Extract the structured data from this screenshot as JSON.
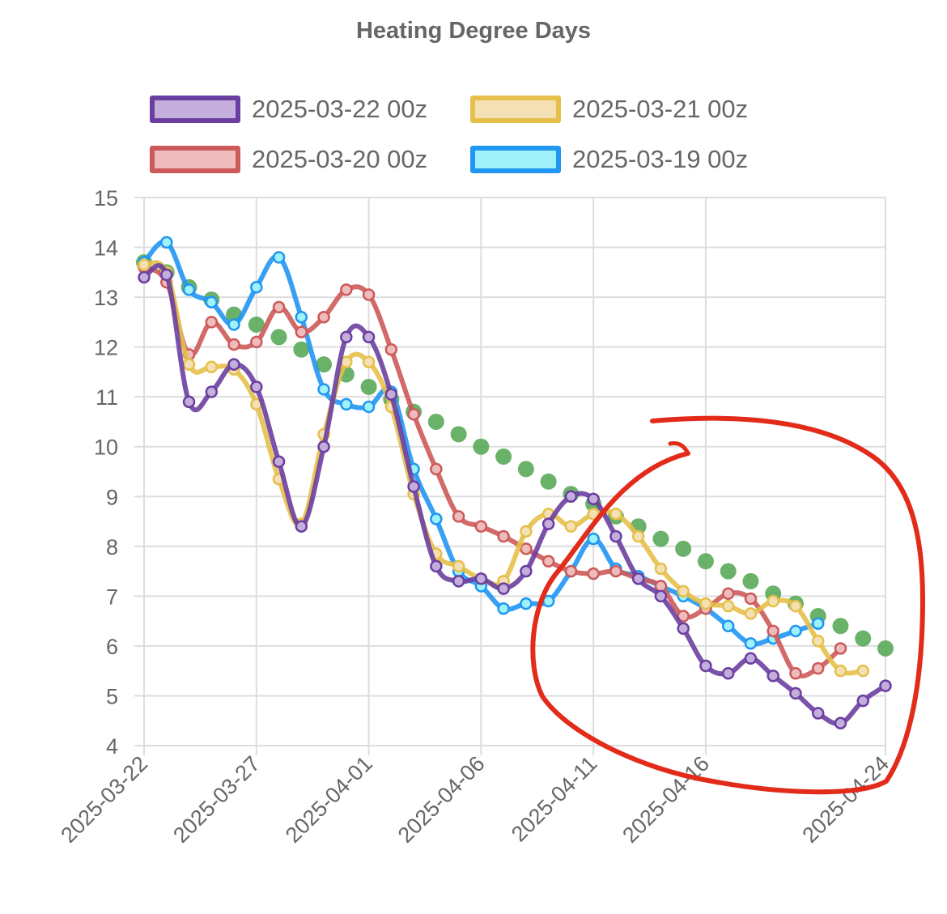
{
  "chart_data": {
    "type": "line",
    "title": "Heating Degree Days",
    "xlabel": "",
    "ylabel": "",
    "ylim": [
      4,
      15
    ],
    "y_ticks": [
      "4",
      "5",
      "6",
      "7",
      "8",
      "9",
      "10",
      "11",
      "12",
      "13",
      "14",
      "15"
    ],
    "x_start": "2025-03-22",
    "x_ticks": [
      "2025-03-22",
      "2025-03-27",
      "2025-04-01",
      "2025-04-06",
      "2025-04-11",
      "2025-04-16",
      "2025-04-24"
    ],
    "grid": true,
    "legend_position": "top",
    "series": [
      {
        "name": "2025-03-22 00z",
        "color": "#6b3fa0",
        "fill": "#c4aedc",
        "x": [
          "2025-03-22",
          "2025-03-23",
          "2025-03-24",
          "2025-03-25",
          "2025-03-26",
          "2025-03-27",
          "2025-03-28",
          "2025-03-29",
          "2025-03-30",
          "2025-03-31",
          "2025-04-01",
          "2025-04-02",
          "2025-04-03",
          "2025-04-04",
          "2025-04-05",
          "2025-04-06",
          "2025-04-07",
          "2025-04-08",
          "2025-04-09",
          "2025-04-10",
          "2025-04-11",
          "2025-04-12",
          "2025-04-13",
          "2025-04-14",
          "2025-04-15",
          "2025-04-16",
          "2025-04-17",
          "2025-04-18",
          "2025-04-19",
          "2025-04-20",
          "2025-04-21",
          "2025-04-22",
          "2025-04-23",
          "2025-04-24"
        ],
        "values": [
          13.4,
          13.45,
          10.9,
          11.1,
          11.65,
          11.2,
          9.7,
          8.4,
          10.0,
          12.2,
          12.2,
          11.05,
          9.2,
          7.6,
          7.3,
          7.35,
          7.15,
          7.5,
          8.45,
          9.0,
          8.95,
          8.2,
          7.35,
          7.0,
          6.35,
          5.6,
          5.45,
          5.75,
          5.4,
          5.05,
          4.65,
          4.45,
          4.9,
          5.2
        ]
      },
      {
        "name": "2025-03-21 00z",
        "color": "#e6c04a",
        "fill": "#f3e1b5",
        "x": [
          "2025-03-22",
          "2025-03-23",
          "2025-03-24",
          "2025-03-25",
          "2025-03-26",
          "2025-03-27",
          "2025-03-28",
          "2025-03-29",
          "2025-03-30",
          "2025-03-31",
          "2025-04-01",
          "2025-04-02",
          "2025-04-03",
          "2025-04-04",
          "2025-04-05",
          "2025-04-06",
          "2025-04-07",
          "2025-04-08",
          "2025-04-09",
          "2025-04-10",
          "2025-04-11",
          "2025-04-12",
          "2025-04-13",
          "2025-04-14",
          "2025-04-15",
          "2025-04-16",
          "2025-04-17",
          "2025-04-18",
          "2025-04-19",
          "2025-04-20",
          "2025-04-21",
          "2025-04-22",
          "2025-04-23"
        ],
        "values": [
          13.65,
          13.5,
          11.65,
          11.6,
          11.55,
          10.85,
          9.35,
          8.45,
          10.25,
          11.7,
          11.7,
          10.8,
          9.05,
          7.85,
          7.6,
          7.35,
          7.3,
          8.3,
          8.65,
          8.4,
          8.65,
          8.65,
          8.2,
          7.55,
          7.1,
          6.85,
          6.8,
          6.65,
          6.9,
          6.8,
          6.1,
          5.5,
          5.5
        ]
      },
      {
        "name": "2025-03-20 00z",
        "color": "#cd5a5a",
        "fill": "#eebcbc",
        "x": [
          "2025-03-22",
          "2025-03-23",
          "2025-03-24",
          "2025-03-25",
          "2025-03-26",
          "2025-03-27",
          "2025-03-28",
          "2025-03-29",
          "2025-03-30",
          "2025-03-31",
          "2025-04-01",
          "2025-04-02",
          "2025-04-03",
          "2025-04-04",
          "2025-04-05",
          "2025-04-06",
          "2025-04-07",
          "2025-04-08",
          "2025-04-09",
          "2025-04-10",
          "2025-04-11",
          "2025-04-12",
          "2025-04-13",
          "2025-04-14",
          "2025-04-15",
          "2025-04-16",
          "2025-04-17",
          "2025-04-18",
          "2025-04-19",
          "2025-04-20",
          "2025-04-21",
          "2025-04-22"
        ],
        "values": [
          13.6,
          13.3,
          11.85,
          12.5,
          12.05,
          12.1,
          12.8,
          12.3,
          12.6,
          13.15,
          13.05,
          11.95,
          10.65,
          9.55,
          8.6,
          8.4,
          8.2,
          7.95,
          7.7,
          7.5,
          7.45,
          7.5,
          7.35,
          7.2,
          6.6,
          6.75,
          7.05,
          6.95,
          6.3,
          5.45,
          5.55,
          5.95
        ]
      },
      {
        "name": "2025-03-19 00z",
        "color": "#2196f3",
        "fill": "#9ef2f8",
        "x": [
          "2025-03-22",
          "2025-03-23",
          "2025-03-24",
          "2025-03-25",
          "2025-03-26",
          "2025-03-27",
          "2025-03-28",
          "2025-03-29",
          "2025-03-30",
          "2025-03-31",
          "2025-04-01",
          "2025-04-02",
          "2025-04-03",
          "2025-04-04",
          "2025-04-05",
          "2025-04-06",
          "2025-04-07",
          "2025-04-08",
          "2025-04-09",
          "2025-04-10",
          "2025-04-11",
          "2025-04-12",
          "2025-04-13",
          "2025-04-14",
          "2025-04-15",
          "2025-04-16",
          "2025-04-17",
          "2025-04-18",
          "2025-04-19",
          "2025-04-20",
          "2025-04-21"
        ],
        "values": [
          13.7,
          14.1,
          13.15,
          12.9,
          12.45,
          13.2,
          13.8,
          12.6,
          11.15,
          10.85,
          10.8,
          11.1,
          9.55,
          8.55,
          7.5,
          7.2,
          6.75,
          6.85,
          6.9,
          7.5,
          8.15,
          7.55,
          7.4,
          7.2,
          7.0,
          6.75,
          6.4,
          6.05,
          6.15,
          6.3,
          6.45
        ]
      },
      {
        "name": "",
        "color": "#5aa85a",
        "fill": "#5aa85a",
        "style": "dots",
        "x": [
          "2025-03-22",
          "2025-03-23",
          "2025-03-24",
          "2025-03-25",
          "2025-03-26",
          "2025-03-27",
          "2025-03-28",
          "2025-03-29",
          "2025-03-30",
          "2025-03-31",
          "2025-04-01",
          "2025-04-02",
          "2025-04-03",
          "2025-04-04",
          "2025-04-05",
          "2025-04-06",
          "2025-04-07",
          "2025-04-08",
          "2025-04-09",
          "2025-04-10",
          "2025-04-11",
          "2025-04-12",
          "2025-04-13",
          "2025-04-14",
          "2025-04-15",
          "2025-04-16",
          "2025-04-17",
          "2025-04-18",
          "2025-04-19",
          "2025-04-20",
          "2025-04-21",
          "2025-04-22",
          "2025-04-23",
          "2025-04-24"
        ],
        "values": [
          13.7,
          13.5,
          13.2,
          12.95,
          12.65,
          12.45,
          12.2,
          11.95,
          11.65,
          11.45,
          11.2,
          10.95,
          10.7,
          10.5,
          10.25,
          10.0,
          9.8,
          9.55,
          9.3,
          9.05,
          8.85,
          8.6,
          8.4,
          8.15,
          7.95,
          7.7,
          7.5,
          7.3,
          7.05,
          6.85,
          6.6,
          6.4,
          6.15,
          5.95
        ]
      }
    ]
  }
}
